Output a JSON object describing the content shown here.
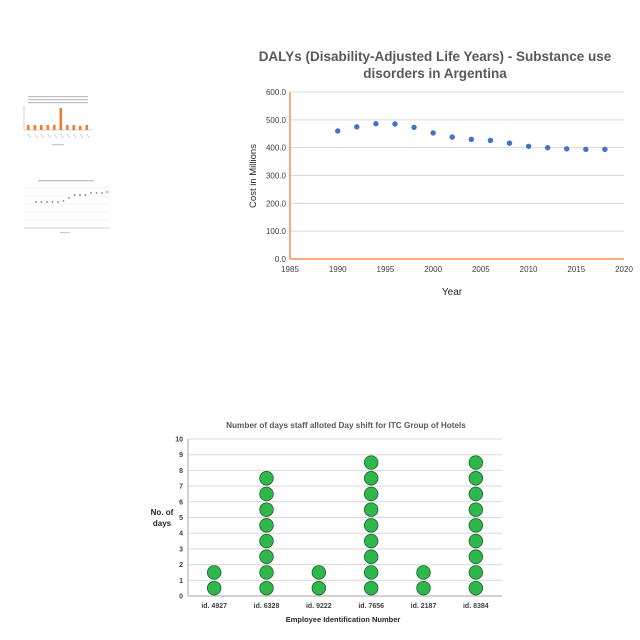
{
  "chart_data": [
    {
      "type": "scatter",
      "title_line1": "DALYs (Disability-Adjusted Life Years) - Substance use",
      "title_line2": "disorders in Argentina",
      "xlabel": "Year",
      "ylabel": "Cost in Millions",
      "xlim": [
        1985,
        2020
      ],
      "ylim": [
        0,
        600
      ],
      "x_ticks": [
        "1985",
        "1990",
        "1995",
        "2000",
        "2005",
        "2010",
        "2015",
        "2020"
      ],
      "y_ticks": [
        "0.0",
        "100.0",
        "200.0",
        "300.0",
        "400.0",
        "500.0",
        "600.0"
      ],
      "grid": "horizontal",
      "colors": {
        "point": "#4472C4",
        "axis": "#ED7D31",
        "grid": "#D9D9D9"
      },
      "x": [
        1990,
        1992,
        1994,
        1996,
        1998,
        2000,
        2002,
        2004,
        2006,
        2008,
        2010,
        2012,
        2014,
        2016,
        2018
      ],
      "y": [
        460,
        475,
        486,
        485,
        473,
        453,
        438,
        430,
        426,
        416,
        405,
        400,
        396,
        394,
        394
      ]
    },
    {
      "type": "dot-plot",
      "title": "Number of days staff alloted Day shift for ITC Group of Hotels",
      "xlabel": "Employee Identification Number",
      "ylabel_line1": "No. of",
      "ylabel_line2": "days",
      "ylim": [
        0,
        10
      ],
      "y_ticks": [
        "0",
        "1",
        "2",
        "3",
        "4",
        "5",
        "6",
        "7",
        "8",
        "9",
        "10"
      ],
      "grid": "horizontal",
      "colors": {
        "dot": "#2EB84B",
        "dot_stroke": "#1E5E2A",
        "grid": "#D9D9D9"
      },
      "categories": [
        "id. 4927",
        "id. 6328",
        "id. 9222",
        "id. 7656",
        "id. 2187",
        "id. 8384"
      ],
      "values": [
        2,
        8,
        2,
        9,
        2,
        9
      ]
    }
  ],
  "thumbnails": [
    {
      "type": "bar",
      "color": "#ED7D31"
    },
    {
      "type": "scatter",
      "color": "#7F7F7F"
    }
  ]
}
